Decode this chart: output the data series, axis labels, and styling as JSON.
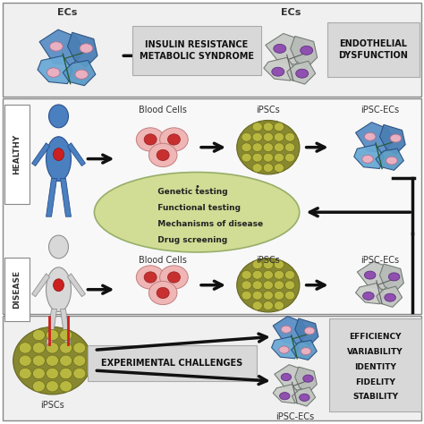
{
  "bg_color": "#ffffff",
  "top_label_left": "ECs",
  "top_label_mid": "ECs",
  "top_box1": "INSULIN RESISTANCE\nMETABOLIC SYNDROME",
  "top_box2": "ENDOTHELIAL\nDYSFUNCTION",
  "healthy_label": "HEALTHY",
  "disease_label": "DISEASE",
  "blood_cells_label": "Blood Cells",
  "ipscs_label": "iPSCs",
  "ipsc_ecs_label": "iPSC-ECs",
  "ellipse_items": [
    "  Genetic testing",
    "  Functional testing",
    "  Mechanisms of disease",
    "  Drug screening"
  ],
  "bottom_box_label": "EXPERIMENTAL CHALLENGES",
  "bottom_ipscs": "iPSCs",
  "bottom_ipsc_ecs": "iPSC-ECs",
  "bottom_right_lines": [
    "EFFICIENCY",
    "VARIABILITY",
    "IDENTITY",
    "FIDELITY",
    "STABILITY"
  ],
  "arrow_color": "#111111",
  "ellipse_fill": "#cdd98a",
  "gray_box_color": "#cccccc",
  "ec_blue": "#4a85c0",
  "ec_blue_dark": "#2a5a8a",
  "ec_blue_mid": "#6aaad5",
  "ec_gray": "#c0c8c0",
  "ec_gray_dark": "#909890",
  "ec_pink_nuc": "#e8b0c0",
  "ec_purple_nuc": "#9050b0",
  "ipsc_olive": "#888830",
  "ipsc_yellow": "#b8b848",
  "blood_pink": "#f0b0b0",
  "blood_red": "#c83030",
  "section_edge": "#888888",
  "section_face_top": "#f0f0f0",
  "section_face_mid": "#f8f8f8",
  "section_face_bot": "#f0f0f0"
}
